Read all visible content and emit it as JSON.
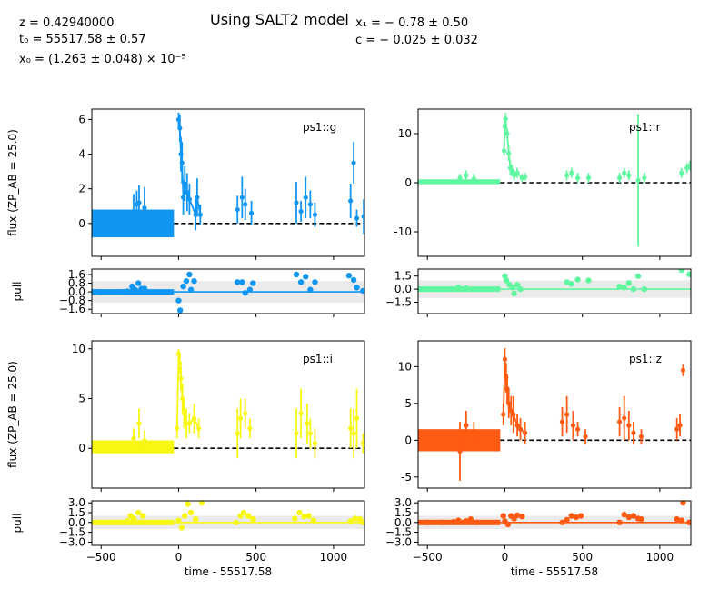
{
  "header": {
    "title": "Using SALT2 model",
    "params": {
      "z": "z = 0.42940000",
      "t0": "t₀ = 55517.58 ± 0.57",
      "x0": "x₀ = (1.263 ± 0.048) × 10⁻⁵",
      "x1": "x₁ = − 0.78 ± 0.50",
      "c": "c = − 0.025 ± 0.032"
    }
  },
  "axes_text": {
    "flux_ylabel": "flux (ZP_AB = 25.0)",
    "pull_ylabel": "pull",
    "xlabel": "time - 55517.58"
  },
  "chart_data": {
    "type": "scatter",
    "x_label": "time - 55517.58",
    "xlim": [
      -560,
      1200
    ],
    "xticks": [
      -500,
      0,
      500,
      1000
    ],
    "panels": [
      {
        "band": "ps1::g",
        "color": "#1196f3",
        "flux_ylim": [
          -1.9,
          6.6
        ],
        "flux_yticks": [
          0,
          2,
          4,
          6
        ],
        "pull_ylim": [
          -2.0,
          2.1
        ],
        "pull_yticks": [
          1.6,
          0.8,
          0.0,
          -0.8,
          -1.6
        ],
        "pull_ytick_labels": [
          "1.6",
          "0.8",
          "0.0",
          "−0.8",
          "−1.6"
        ],
        "pre_block": [
          -0.8,
          0.8
        ],
        "points": [
          [
            -290,
            0.7,
            1.0
          ],
          [
            -255,
            1.2,
            1.0
          ],
          [
            -220,
            0.9,
            1.2
          ],
          [
            -270,
            1.1,
            0.8
          ],
          [
            0,
            6.0,
            0.4
          ],
          [
            8,
            5.5,
            0.8
          ],
          [
            15,
            4.0,
            1.0
          ],
          [
            22,
            3.5,
            1.2
          ],
          [
            30,
            1.5,
            1.0
          ],
          [
            40,
            2.3,
            1.0
          ],
          [
            55,
            1.8,
            1.1
          ],
          [
            70,
            1.4,
            0.9
          ],
          [
            110,
            0.5,
            0.9
          ],
          [
            120,
            1.5,
            1.1
          ],
          [
            140,
            0.5,
            0.6
          ],
          [
            380,
            0.8,
            0.8
          ],
          [
            410,
            1.5,
            1.2
          ],
          [
            430,
            1.1,
            0.9
          ],
          [
            470,
            0.6,
            0.7
          ],
          [
            760,
            1.2,
            1.2
          ],
          [
            790,
            0.7,
            0.6
          ],
          [
            820,
            1.5,
            1.2
          ],
          [
            850,
            1.1,
            0.8
          ],
          [
            880,
            0.5,
            0.7
          ],
          [
            1110,
            1.3,
            1.0
          ],
          [
            1130,
            3.5,
            1.2
          ],
          [
            1150,
            0.3,
            0.5
          ],
          [
            1195,
            0.4,
            1.0
          ]
        ],
        "pull_points": [
          [
            -500,
            0.0
          ],
          [
            -400,
            0.0
          ],
          [
            -330,
            0.05
          ],
          [
            -300,
            0.5
          ],
          [
            -280,
            0.2
          ],
          [
            -260,
            0.8
          ],
          [
            -240,
            0.3
          ],
          [
            -220,
            0.3
          ],
          [
            0,
            -0.8
          ],
          [
            10,
            -1.7
          ],
          [
            30,
            0.5
          ],
          [
            50,
            1.0
          ],
          [
            70,
            1.6
          ],
          [
            80,
            0.2
          ],
          [
            100,
            1.0
          ],
          [
            380,
            0.9
          ],
          [
            410,
            0.9
          ],
          [
            430,
            -0.1
          ],
          [
            460,
            0.2
          ],
          [
            480,
            0.8
          ],
          [
            760,
            1.6
          ],
          [
            790,
            0.9
          ],
          [
            820,
            1.4
          ],
          [
            850,
            0.2
          ],
          [
            880,
            0.9
          ],
          [
            1100,
            1.5
          ],
          [
            1130,
            1.1
          ],
          [
            1150,
            0.4
          ],
          [
            1190,
            0.1
          ]
        ]
      },
      {
        "band": "ps1::r",
        "color": "#60f7a0",
        "flux_ylim": [
          -15,
          15
        ],
        "flux_yticks": [
          10,
          0,
          -10
        ],
        "pull_ylim": [
          -2.8,
          2.3
        ],
        "pull_yticks": [
          1.5,
          0.0,
          -1.5
        ],
        "pull_ytick_labels": [
          "1.5",
          "0.0",
          "−1.5"
        ],
        "pre_block": [
          -0.3,
          0.7
        ],
        "points": [
          [
            -290,
            1.0,
            0.8
          ],
          [
            -250,
            1.5,
            1.0
          ],
          [
            -200,
            0.8,
            1.0
          ],
          [
            -5,
            6.5,
            1.0
          ],
          [
            0,
            11.5,
            1.5
          ],
          [
            5,
            13.0,
            1.2
          ],
          [
            15,
            10.0,
            1.0
          ],
          [
            25,
            6.0,
            1.5
          ],
          [
            35,
            3.0,
            1.5
          ],
          [
            45,
            2.5,
            1.2
          ],
          [
            60,
            1.5,
            1.0
          ],
          [
            80,
            2.0,
            1.0
          ],
          [
            110,
            1.0,
            0.8
          ],
          [
            130,
            1.2,
            0.8
          ],
          [
            400,
            1.5,
            1.0
          ],
          [
            430,
            2.0,
            1.0
          ],
          [
            470,
            1.0,
            1.0
          ],
          [
            540,
            1.0,
            1.0
          ],
          [
            740,
            1.0,
            1.0
          ],
          [
            770,
            2.0,
            1.0
          ],
          [
            800,
            1.5,
            1.0
          ],
          [
            860,
            0.5,
            13.5
          ],
          [
            900,
            1.0,
            1.0
          ],
          [
            1140,
            2.0,
            1.0
          ],
          [
            1175,
            3.0,
            1.0
          ],
          [
            1195,
            3.5,
            1.0
          ]
        ],
        "pull_points": [
          [
            -500,
            0.0
          ],
          [
            -400,
            0.0
          ],
          [
            -300,
            0.2
          ],
          [
            -250,
            0.1
          ],
          [
            0,
            1.5
          ],
          [
            10,
            1.0
          ],
          [
            30,
            0.5
          ],
          [
            50,
            0.2
          ],
          [
            60,
            -0.5
          ],
          [
            80,
            0.5
          ],
          [
            100,
            0.0
          ],
          [
            400,
            0.8
          ],
          [
            430,
            0.6
          ],
          [
            470,
            1.1
          ],
          [
            540,
            1.0
          ],
          [
            740,
            0.3
          ],
          [
            770,
            0.2
          ],
          [
            800,
            0.7
          ],
          [
            830,
            0.0
          ],
          [
            860,
            1.5
          ],
          [
            900,
            0.0
          ],
          [
            1140,
            2.2
          ],
          [
            1190,
            1.7
          ]
        ]
      },
      {
        "band": "ps1::i",
        "color": "#f7f712",
        "flux_ylim": [
          -4,
          10.8
        ],
        "flux_yticks": [
          0,
          5,
          10
        ],
        "pull_ylim": [
          -3.5,
          3.3
        ],
        "pull_yticks": [
          3.0,
          1.5,
          0.0,
          -1.5,
          -3.0
        ],
        "pull_ytick_labels": [
          "3.0",
          "1.5",
          "0.0",
          "−1.5",
          "−3.0"
        ],
        "pre_block": [
          -0.5,
          0.8
        ],
        "points": [
          [
            -290,
            1.0,
            1.0
          ],
          [
            -255,
            2.5,
            1.5
          ],
          [
            -220,
            0.8,
            1.0
          ],
          [
            -10,
            2.0,
            1.0
          ],
          [
            0,
            9.5,
            0.5
          ],
          [
            8,
            8.5,
            1.0
          ],
          [
            15,
            7.0,
            1.2
          ],
          [
            25,
            5.0,
            1.5
          ],
          [
            35,
            3.5,
            1.5
          ],
          [
            50,
            2.5,
            1.5
          ],
          [
            70,
            2.5,
            1.0
          ],
          [
            100,
            3.0,
            1.5
          ],
          [
            130,
            2.0,
            1.0
          ],
          [
            380,
            1.5,
            2.5
          ],
          [
            400,
            3.0,
            2.0
          ],
          [
            430,
            3.5,
            1.5
          ],
          [
            460,
            2.0,
            1.0
          ],
          [
            760,
            1.5,
            2.5
          ],
          [
            790,
            3.5,
            2.5
          ],
          [
            830,
            2.5,
            2.0
          ],
          [
            850,
            1.5,
            1.5
          ],
          [
            880,
            0.5,
            1.5
          ],
          [
            1110,
            2.0,
            2.0
          ],
          [
            1130,
            1.5,
            2.5
          ],
          [
            1150,
            3.0,
            3.0
          ],
          [
            1190,
            0.5,
            1.0
          ]
        ],
        "pull_points": [
          [
            -500,
            0.0
          ],
          [
            -400,
            0.0
          ],
          [
            -330,
            0.2
          ],
          [
            -310,
            1.0
          ],
          [
            -290,
            0.6
          ],
          [
            -260,
            1.5
          ],
          [
            -230,
            1.0
          ],
          [
            0,
            0.3
          ],
          [
            20,
            -0.8
          ],
          [
            40,
            1.0
          ],
          [
            60,
            2.8
          ],
          [
            80,
            1.5
          ],
          [
            110,
            0.5
          ],
          [
            150,
            3.0
          ],
          [
            370,
            0.0
          ],
          [
            400,
            1.0
          ],
          [
            420,
            1.5
          ],
          [
            450,
            1.0
          ],
          [
            480,
            0.5
          ],
          [
            750,
            0.6
          ],
          [
            780,
            1.5
          ],
          [
            810,
            0.9
          ],
          [
            840,
            1.0
          ],
          [
            870,
            0.3
          ],
          [
            1110,
            0.2
          ],
          [
            1140,
            0.6
          ],
          [
            1170,
            0.5
          ],
          [
            1190,
            0.0
          ]
        ]
      },
      {
        "band": "ps1::z",
        "color": "#ff5a11",
        "flux_ylim": [
          -6.5,
          13.5
        ],
        "flux_yticks": [
          -5,
          0,
          5,
          10
        ],
        "pull_ylim": [
          -3.5,
          3.3
        ],
        "pull_yticks": [
          3.0,
          1.5,
          0.0,
          -1.5,
          -3.0
        ],
        "pull_ytick_labels": [
          "3.0",
          "1.5",
          "0.0",
          "−1.5",
          "−3.0"
        ],
        "pre_block": [
          -1.5,
          1.5
        ],
        "points": [
          [
            -290,
            -1.5,
            4.0
          ],
          [
            -250,
            2.0,
            2.0
          ],
          [
            -200,
            1.0,
            1.5
          ],
          [
            -10,
            3.5,
            1.5
          ],
          [
            0,
            11.0,
            1.5
          ],
          [
            8,
            8.5,
            2.0
          ],
          [
            15,
            7.0,
            2.0
          ],
          [
            25,
            5.0,
            2.0
          ],
          [
            40,
            4.0,
            2.0
          ],
          [
            55,
            3.5,
            2.5
          ],
          [
            80,
            2.0,
            1.5
          ],
          [
            100,
            1.5,
            1.5
          ],
          [
            130,
            1.0,
            1.5
          ],
          [
            370,
            2.5,
            2.0
          ],
          [
            400,
            3.5,
            2.5
          ],
          [
            440,
            2.0,
            2.0
          ],
          [
            470,
            1.5,
            1.0
          ],
          [
            520,
            0.5,
            1.0
          ],
          [
            740,
            2.5,
            2.0
          ],
          [
            770,
            3.0,
            3.0
          ],
          [
            800,
            2.0,
            2.0
          ],
          [
            830,
            1.0,
            1.5
          ],
          [
            880,
            0.5,
            1.0
          ],
          [
            1110,
            1.5,
            1.5
          ],
          [
            1130,
            2.0,
            1.5
          ],
          [
            1150,
            9.5,
            0.8
          ]
        ],
        "pull_points": [
          [
            -500,
            0.0
          ],
          [
            -400,
            0.0
          ],
          [
            -330,
            0.1
          ],
          [
            -300,
            0.3
          ],
          [
            -250,
            0.2
          ],
          [
            -220,
            0.5
          ],
          [
            -180,
            0.0
          ],
          [
            -10,
            1.0
          ],
          [
            0,
            0.2
          ],
          [
            20,
            -0.3
          ],
          [
            40,
            1.0
          ],
          [
            60,
            0.6
          ],
          [
            80,
            1.1
          ],
          [
            110,
            0.9
          ],
          [
            370,
            0.0
          ],
          [
            400,
            0.4
          ],
          [
            430,
            1.0
          ],
          [
            460,
            0.8
          ],
          [
            490,
            1.0
          ],
          [
            740,
            0.0
          ],
          [
            770,
            1.2
          ],
          [
            800,
            0.8
          ],
          [
            830,
            1.0
          ],
          [
            860,
            0.6
          ],
          [
            880,
            0.5
          ],
          [
            1110,
            0.5
          ],
          [
            1140,
            0.3
          ],
          [
            1150,
            3.0
          ],
          [
            1190,
            0.0
          ]
        ]
      }
    ]
  }
}
